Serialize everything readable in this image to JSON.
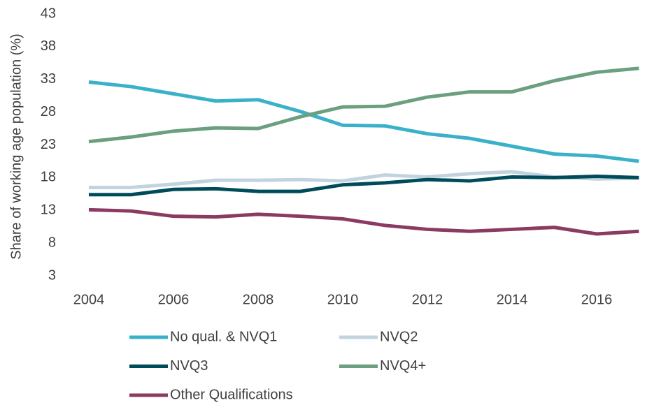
{
  "chart_data": {
    "type": "line",
    "y_label": "Share of working age population (%)",
    "x": [
      2004,
      2005,
      2006,
      2007,
      2008,
      2009,
      2010,
      2011,
      2012,
      2013,
      2014,
      2015,
      2016,
      2017
    ],
    "series": [
      {
        "name": "No qual. & NVQ1",
        "color": "#3bb1c9",
        "values": [
          32.6,
          31.9,
          30.8,
          29.7,
          29.9,
          28.1,
          26.0,
          25.9,
          24.7,
          24.0,
          22.8,
          21.6,
          21.3,
          20.5
        ]
      },
      {
        "name": "NVQ2",
        "color": "#c0d3de",
        "values": [
          16.5,
          16.5,
          17.0,
          17.6,
          17.6,
          17.7,
          17.5,
          18.4,
          18.1,
          18.6,
          18.9,
          18.1,
          17.8,
          17.9
        ]
      },
      {
        "name": "NVQ3",
        "color": "#004b5a",
        "values": [
          15.4,
          15.4,
          16.2,
          16.3,
          15.9,
          15.9,
          16.9,
          17.2,
          17.7,
          17.5,
          18.1,
          18.0,
          18.2,
          18.0
        ]
      },
      {
        "name": "NVQ4+",
        "color": "#6a9f7f",
        "values": [
          23.5,
          24.2,
          25.1,
          25.6,
          25.5,
          27.3,
          28.8,
          28.9,
          30.3,
          31.1,
          31.1,
          32.8,
          34.1,
          34.7
        ]
      },
      {
        "name": "Other Qualifications",
        "color": "#8b3a62",
        "values": [
          13.1,
          12.9,
          12.1,
          12.0,
          12.4,
          12.1,
          11.7,
          10.7,
          10.1,
          9.8,
          10.1,
          10.4,
          9.4,
          9.8
        ]
      }
    ],
    "xlim": [
      2003.5,
      2017.3
    ],
    "xticks": [
      2004,
      2006,
      2008,
      2010,
      2012,
      2014,
      2016
    ],
    "ylim": [
      3,
      43
    ],
    "yticks": [
      3,
      8,
      13,
      18,
      23,
      28,
      33,
      38,
      43
    ],
    "grid": false,
    "legend": "bottom"
  }
}
